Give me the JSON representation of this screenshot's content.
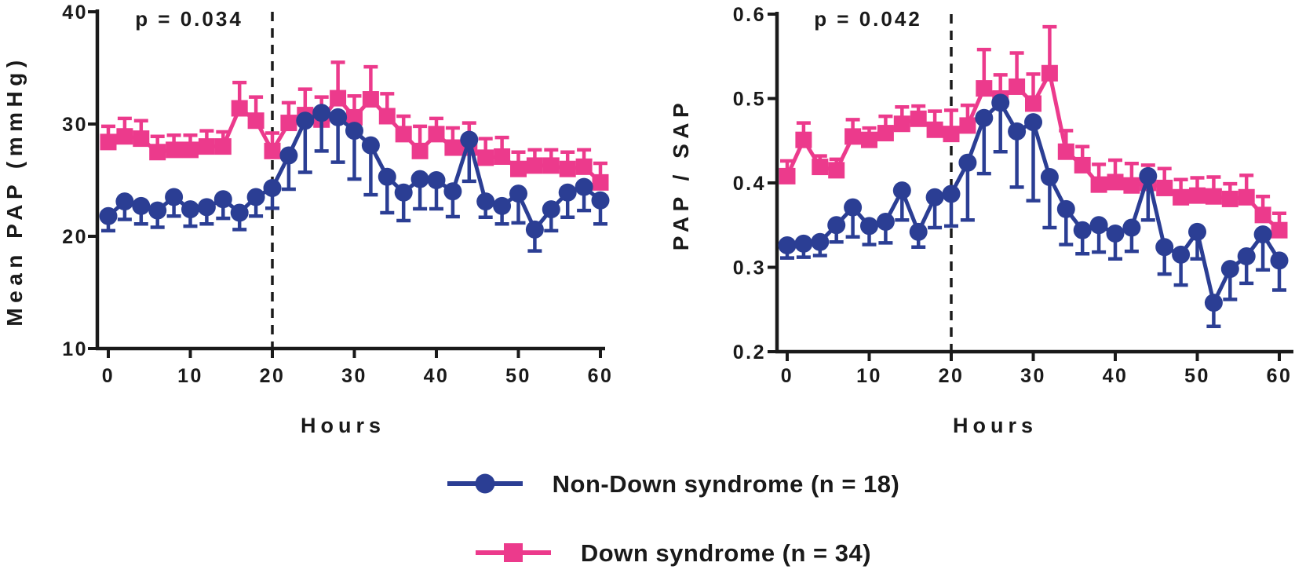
{
  "figure": {
    "background": "#ffffff",
    "text_color": "#1a1a1a"
  },
  "legend": {
    "items": [
      {
        "label": "Non-Down syndrome (n = 18)",
        "marker": "circle",
        "color": "#2B3E94"
      },
      {
        "label": "Down syndrome (n = 34)",
        "marker": "square",
        "color": "#EC3A8C"
      }
    ]
  },
  "chart_data": [
    {
      "type": "line",
      "title": "",
      "ylabel": "Mean PAP (mmHg)",
      "xlabel": "Hours",
      "annotation": "p = 0.034",
      "xlim": [
        0,
        60
      ],
      "ylim": [
        10,
        40
      ],
      "xticks": [
        "0",
        "10",
        "20",
        "30",
        "40",
        "50",
        "60"
      ],
      "yticks": [
        "10",
        "20",
        "30",
        "40"
      ],
      "dashed_line_x": 20,
      "grid": false,
      "x": [
        0,
        2,
        4,
        6,
        8,
        10,
        12,
        14,
        16,
        18,
        20,
        22,
        24,
        26,
        28,
        30,
        32,
        34,
        36,
        38,
        40,
        42,
        44,
        46,
        48,
        50,
        52,
        54,
        56,
        58,
        60
      ],
      "series": [
        {
          "name": "Down syndrome (n = 34)",
          "color": "#EC3A8C",
          "marker": "square",
          "error_direction": "up",
          "values": [
            28.4,
            28.9,
            28.7,
            27.5,
            27.7,
            27.7,
            28.0,
            28.0,
            31.4,
            30.3,
            27.6,
            30.1,
            30.8,
            30.4,
            32.3,
            30.6,
            32.2,
            30.7,
            29.1,
            27.6,
            29.1,
            27.9,
            27.9,
            27.0,
            27.1,
            26.0,
            26.3,
            26.3,
            26.0,
            26.2,
            24.8
          ],
          "errors": [
            1.4,
            1.6,
            1.6,
            1.4,
            1.3,
            1.3,
            1.4,
            1.3,
            2.3,
            2.1,
            1.6,
            1.8,
            2.3,
            2.0,
            3.2,
            1.9,
            2.9,
            2.0,
            1.6,
            2.2,
            1.4,
            1.75,
            2.2,
            1.7,
            1.7,
            1.5,
            1.4,
            1.4,
            1.5,
            1.5,
            1.7
          ]
        },
        {
          "name": "Non-Down syndrome (n = 18)",
          "color": "#2B3E94",
          "marker": "circle",
          "error_direction": "down",
          "values": [
            21.8,
            23.1,
            22.7,
            22.3,
            23.5,
            22.4,
            22.6,
            23.3,
            22.1,
            23.5,
            24.3,
            27.2,
            30.3,
            31.0,
            30.6,
            29.4,
            28.1,
            25.3,
            23.9,
            25.1,
            25.0,
            24.0,
            28.6,
            23.1,
            22.7,
            23.8,
            20.6,
            22.4,
            23.9,
            24.4,
            23.2
          ],
          "errors": [
            1.3,
            1.6,
            1.6,
            1.5,
            1.7,
            1.5,
            1.5,
            1.7,
            1.5,
            1.7,
            1.8,
            3.0,
            4.6,
            3.4,
            4.0,
            4.3,
            4.4,
            3.2,
            2.5,
            2.65,
            2.55,
            2.25,
            3.7,
            1.4,
            1.6,
            2.6,
            1.9,
            1.9,
            2.2,
            2.1,
            2.1
          ]
        }
      ]
    },
    {
      "type": "line",
      "title": "",
      "ylabel": "PAP / SAP",
      "xlabel": "Hours",
      "annotation": "p = 0.042",
      "xlim": [
        0,
        60
      ],
      "ylim": [
        0.2,
        0.6
      ],
      "xticks": [
        "0",
        "10",
        "20",
        "30",
        "40",
        "50",
        "60"
      ],
      "yticks": [
        "0.2",
        "0.3",
        "0.4",
        "0.5",
        "0.6"
      ],
      "dashed_line_x": 20,
      "grid": false,
      "x": [
        0,
        2,
        4,
        6,
        8,
        10,
        12,
        14,
        16,
        18,
        20,
        22,
        24,
        26,
        28,
        30,
        32,
        34,
        36,
        38,
        40,
        42,
        44,
        46,
        48,
        50,
        52,
        54,
        56,
        58,
        60
      ],
      "series": [
        {
          "name": "Down syndrome (n = 34)",
          "color": "#EC3A8C",
          "marker": "square",
          "error_direction": "up",
          "values": [
            0.408,
            0.451,
            0.419,
            0.415,
            0.455,
            0.451,
            0.459,
            0.47,
            0.476,
            0.463,
            0.458,
            0.468,
            0.512,
            0.5,
            0.514,
            0.494,
            0.53,
            0.437,
            0.421,
            0.398,
            0.401,
            0.397,
            0.4,
            0.394,
            0.383,
            0.385,
            0.384,
            0.381,
            0.383,
            0.362,
            0.344
          ],
          "errors": [
            0.018,
            0.02,
            0.013,
            0.013,
            0.02,
            0.014,
            0.02,
            0.02,
            0.015,
            0.022,
            0.028,
            0.024,
            0.046,
            0.028,
            0.04,
            0.035,
            0.055,
            0.025,
            0.022,
            0.024,
            0.026,
            0.026,
            0.021,
            0.023,
            0.021,
            0.021,
            0.023,
            0.018,
            0.026,
            0.022,
            0.02
          ]
        },
        {
          "name": "Non-Down syndrome (n = 18)",
          "color": "#2B3E94",
          "marker": "circle",
          "error_direction": "down",
          "values": [
            0.326,
            0.328,
            0.33,
            0.35,
            0.371,
            0.349,
            0.354,
            0.391,
            0.342,
            0.383,
            0.387,
            0.424,
            0.477,
            0.495,
            0.461,
            0.472,
            0.407,
            0.369,
            0.344,
            0.35,
            0.34,
            0.347,
            0.408,
            0.324,
            0.315,
            0.342,
            0.258,
            0.298,
            0.313,
            0.339,
            0.308
          ],
          "errors": [
            0.015,
            0.016,
            0.016,
            0.02,
            0.035,
            0.022,
            0.025,
            0.035,
            0.018,
            0.036,
            0.038,
            0.068,
            0.066,
            0.058,
            0.066,
            0.093,
            0.06,
            0.042,
            0.028,
            0.032,
            0.03,
            0.028,
            0.052,
            0.032,
            0.036,
            0.032,
            0.028,
            0.036,
            0.032,
            0.042,
            0.035
          ]
        }
      ]
    }
  ]
}
